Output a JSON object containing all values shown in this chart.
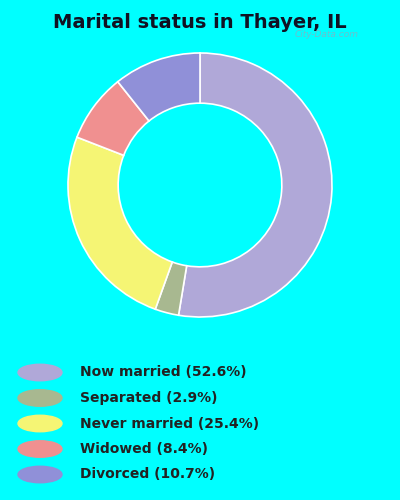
{
  "title": "Marital status in Thayer, IL",
  "bg_cyan": "#00FFFF",
  "bg_chart": "#d8edd8",
  "slices": [
    {
      "label": "Now married (52.6%)",
      "value": 52.6,
      "color": "#b0a8d8"
    },
    {
      "label": "Separated (2.9%)",
      "value": 2.9,
      "color": "#a8b890"
    },
    {
      "label": "Never married (25.4%)",
      "value": 25.4,
      "color": "#f5f574"
    },
    {
      "label": "Widowed (8.4%)",
      "value": 8.4,
      "color": "#f09090"
    },
    {
      "label": "Divorced (10.7%)",
      "value": 10.7,
      "color": "#9090d8"
    }
  ],
  "donut_width": 0.38,
  "startangle": 90,
  "title_fontsize": 14,
  "title_color": "#111122",
  "legend_fontsize": 10,
  "legend_text_color": "#222222",
  "watermark": "City-Data.com"
}
